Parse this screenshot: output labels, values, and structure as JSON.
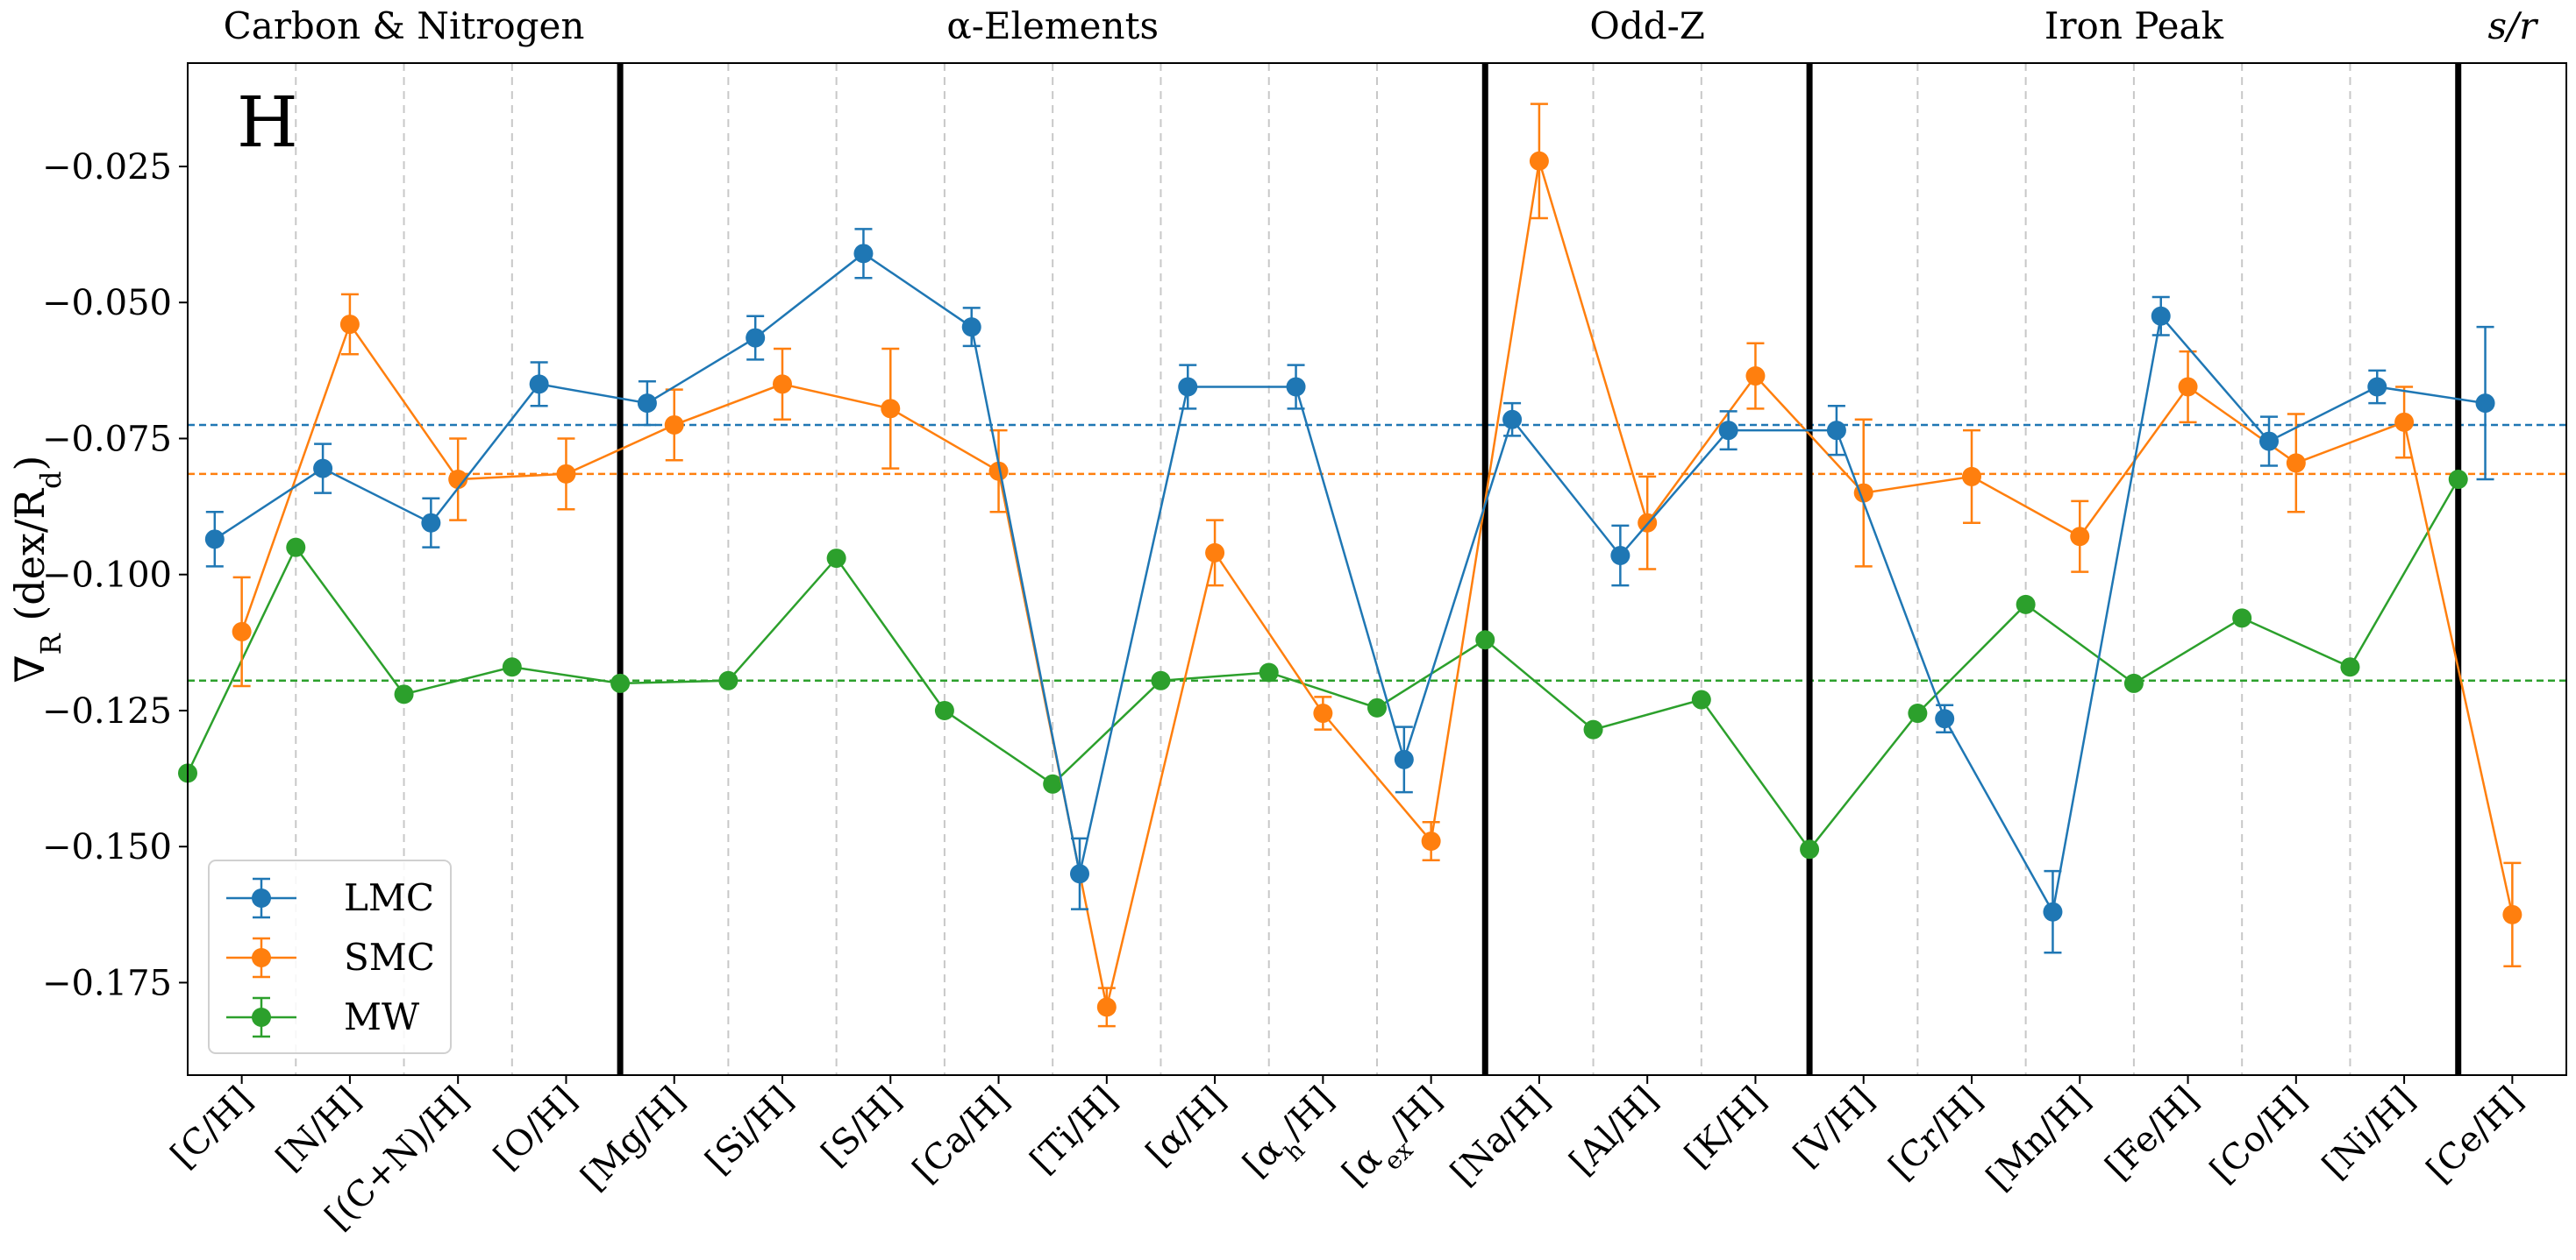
{
  "chart_data": {
    "type": "line",
    "panel_label": "H",
    "ylabel": "∇R (dex/Rd)",
    "ylabel_main": "∇",
    "ylabel_sub_R": "R",
    "ylabel_unit": " (dex/R",
    "ylabel_sub_d": "d",
    "ylabel_close": ")",
    "ylim": [
      -0.192,
      -0.006
    ],
    "yticks": [
      -0.175,
      -0.15,
      -0.125,
      -0.1,
      -0.075,
      -0.05,
      -0.025
    ],
    "ytick_labels": [
      "−0.175",
      "−0.150",
      "−0.125",
      "−0.100",
      "−0.075",
      "−0.050",
      "−0.025"
    ],
    "grid": "dashed vertical between elements",
    "legend_position": "lower-left",
    "elements": [
      {
        "main": "[C/H]"
      },
      {
        "main": "[N/H]"
      },
      {
        "main": "[(C+N)/H]"
      },
      {
        "main": "[O/H]"
      },
      {
        "main": "[Mg/H]"
      },
      {
        "main": "[Si/H]"
      },
      {
        "main": "[S/H]"
      },
      {
        "main": "[Ca/H]"
      },
      {
        "main": "[Ti/H]"
      },
      {
        "main": "[α/H]"
      },
      {
        "main": "[α",
        "sub": "h",
        "tail": "/H]"
      },
      {
        "main": "[α",
        "sub": "ex",
        "tail": "/H]"
      },
      {
        "main": "[Na/H]"
      },
      {
        "main": "[Al/H]"
      },
      {
        "main": "[K/H]"
      },
      {
        "main": "[V/H]"
      },
      {
        "main": "[Cr/H]"
      },
      {
        "main": "[Mn/H]"
      },
      {
        "main": "[Fe/H]"
      },
      {
        "main": "[Co/H]"
      },
      {
        "main": "[Ni/H]"
      },
      {
        "main": "[Ce/H]"
      }
    ],
    "groups": [
      {
        "label": "Carbon & Nitrogen",
        "start": 0,
        "end": 3
      },
      {
        "label": "α-Elements",
        "start": 4,
        "end": 11
      },
      {
        "label": "Odd-Z",
        "start": 12,
        "end": 14
      },
      {
        "label": "Iron Peak",
        "start": 15,
        "end": 20
      },
      {
        "label": "s/r",
        "start": 21,
        "end": 21
      }
    ],
    "series": [
      {
        "name": "LMC",
        "color": "#1f77b4",
        "offset": -0.25,
        "values": [
          -0.0935,
          -0.0805,
          -0.0905,
          -0.065,
          -0.0685,
          -0.0565,
          -0.041,
          -0.0545,
          -0.155,
          -0.0655,
          -0.0655,
          -0.134,
          -0.0715,
          -0.0965,
          -0.0735,
          -0.0735,
          -0.1265,
          -0.162,
          -0.0525,
          -0.0755,
          -0.0655,
          -0.0685
        ],
        "errors": [
          0.005,
          0.0045,
          0.0045,
          0.004,
          0.004,
          0.004,
          0.0045,
          0.0035,
          0.0065,
          0.004,
          0.004,
          0.006,
          0.003,
          0.0055,
          0.0035,
          0.0045,
          0.0025,
          0.0075,
          0.0035,
          0.0045,
          0.003,
          0.014
        ]
      },
      {
        "name": "SMC",
        "color": "#ff7f0e",
        "offset": 0.0,
        "values": [
          -0.1105,
          -0.054,
          -0.0825,
          -0.0815,
          -0.0725,
          -0.065,
          -0.0695,
          -0.081,
          -0.1795,
          -0.096,
          -0.1255,
          -0.149,
          -0.024,
          -0.0905,
          -0.0635,
          -0.085,
          -0.082,
          -0.093,
          -0.0655,
          -0.0795,
          -0.072,
          -0.1625
        ],
        "errors": [
          0.01,
          0.0055,
          0.0075,
          0.0065,
          0.0065,
          0.0065,
          0.011,
          0.0075,
          0.0035,
          0.006,
          0.003,
          0.0035,
          0.0105,
          0.0085,
          0.006,
          0.0135,
          0.0085,
          0.0065,
          0.0065,
          0.009,
          0.0065,
          0.0095
        ]
      },
      {
        "name": "MW",
        "color": "#2ca02c",
        "offset": -0.5,
        "values": [
          -0.1365,
          -0.095,
          -0.122,
          -0.117,
          -0.12,
          -0.1195,
          -0.097,
          -0.125,
          -0.1385,
          -0.1195,
          -0.118,
          -0.1245,
          -0.112,
          -0.1285,
          -0.123,
          -0.1505,
          -0.1255,
          -0.1055,
          -0.12,
          -0.108,
          -0.117,
          -0.0825
        ],
        "errors": [
          0,
          0,
          0,
          0,
          0,
          0,
          0,
          0,
          0,
          0,
          0,
          0,
          0,
          0,
          0,
          0,
          0,
          0,
          0,
          0,
          0,
          0
        ]
      }
    ],
    "mean_lines": [
      {
        "name": "LMC mean",
        "color": "#1f77b4",
        "value": -0.0725
      },
      {
        "name": "SMC mean",
        "color": "#ff7f0e",
        "value": -0.0815
      },
      {
        "name": "MW mean",
        "color": "#2ca02c",
        "value": -0.1195
      }
    ]
  }
}
